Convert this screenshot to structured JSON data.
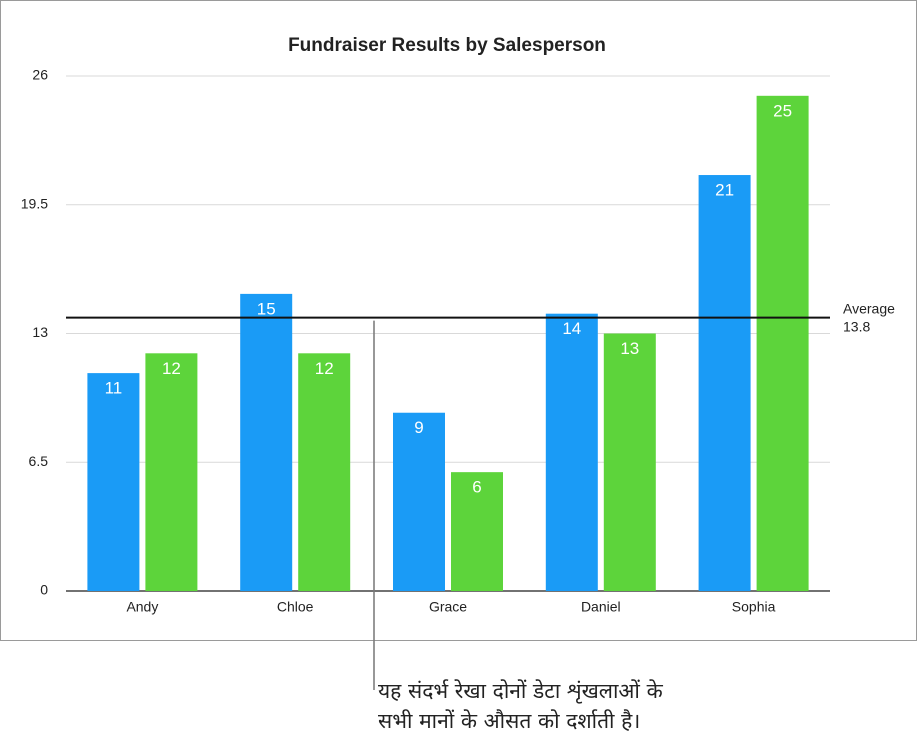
{
  "chart_data": {
    "type": "bar",
    "title": "Fundraiser Results by Salesperson",
    "categories": [
      "Andy",
      "Chloe",
      "Grace",
      "Daniel",
      "Sophia"
    ],
    "series": [
      {
        "color": "#1a9bf6",
        "values": [
          11,
          15,
          9,
          14,
          21
        ]
      },
      {
        "color": "#5dd43b",
        "values": [
          12,
          12,
          6,
          13,
          25
        ]
      }
    ],
    "ylim": [
      0,
      26
    ],
    "yticks": [
      0,
      6.5,
      13,
      19.5,
      26
    ],
    "grid": true,
    "reference_line": {
      "label": "Average",
      "value": 13.8
    },
    "annotation": [
      "यह संदर्भ रेखा दोनों डेटा शृंखलाओं के",
      "सभी मानों के औसत को दर्शाती है।"
    ]
  }
}
